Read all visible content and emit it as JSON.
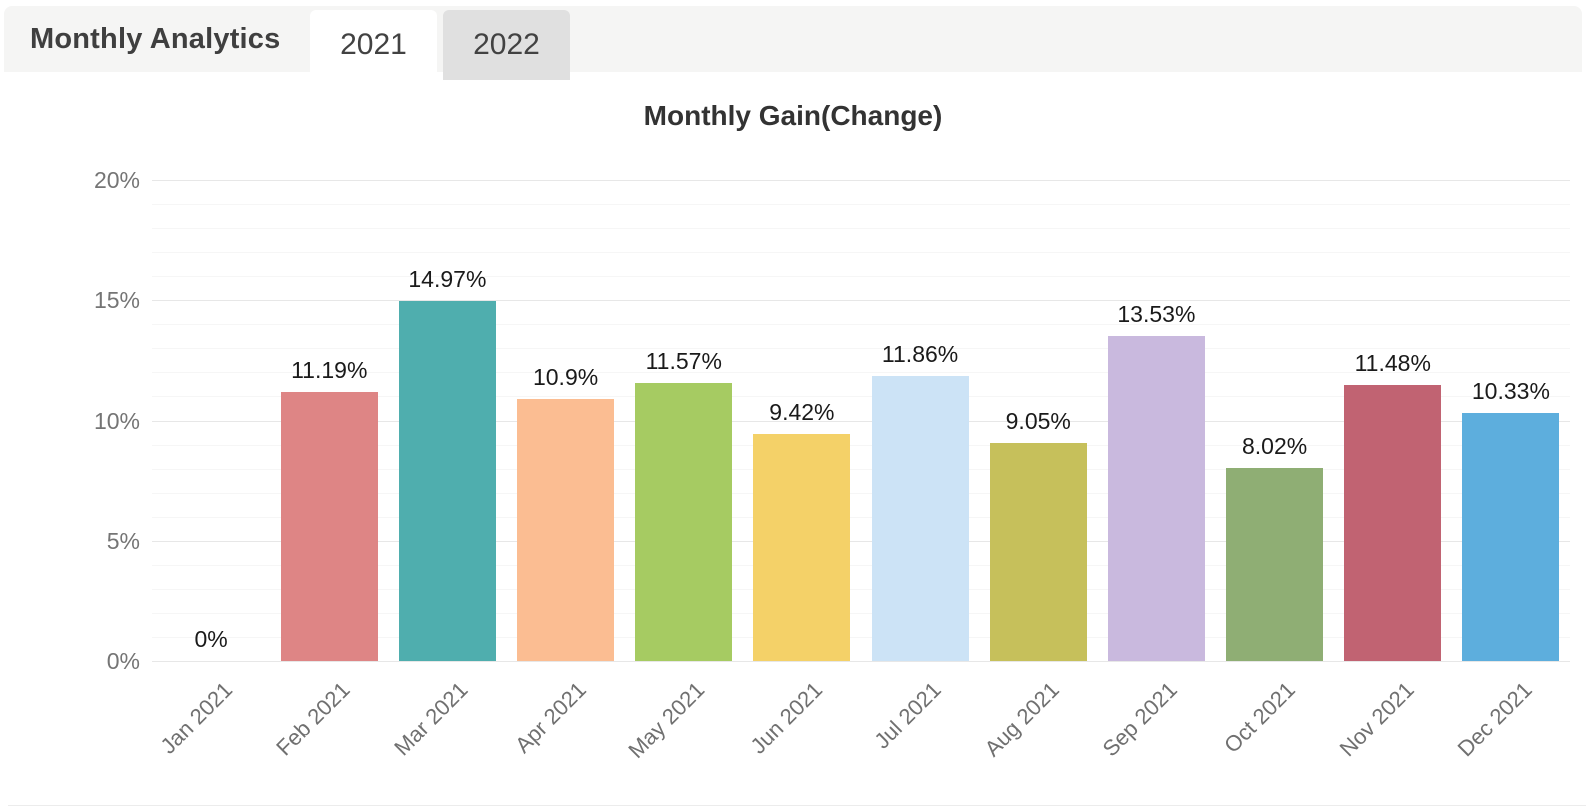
{
  "header": {
    "title": "Monthly Analytics",
    "tabs": [
      {
        "label": "2021",
        "active": true
      },
      {
        "label": "2022",
        "active": false
      }
    ]
  },
  "chart_data": {
    "type": "bar",
    "title": "Monthly Gain(Change)",
    "categories": [
      "Jan 2021",
      "Feb 2021",
      "Mar 2021",
      "Apr 2021",
      "May 2021",
      "Jun 2021",
      "Jul 2021",
      "Aug 2021",
      "Sep 2021",
      "Oct 2021",
      "Nov 2021",
      "Dec 2021"
    ],
    "values": [
      0,
      11.19,
      14.97,
      10.9,
      11.57,
      9.42,
      11.86,
      9.05,
      13.53,
      8.02,
      11.48,
      10.33
    ],
    "value_labels": [
      "0%",
      "11.19%",
      "14.97%",
      "10.9%",
      "11.57%",
      "9.42%",
      "11.86%",
      "9.05%",
      "13.53%",
      "8.02%",
      "11.48%",
      "10.33%"
    ],
    "bar_colors": [
      null,
      "#de8585",
      "#4faeae",
      "#fbbd92",
      "#a6cb62",
      "#f4d168",
      "#cce3f6",
      "#c6c05b",
      "#c9b9de",
      "#8fae74",
      "#c16372",
      "#5daedd"
    ],
    "y_ticks": [
      {
        "value": 0,
        "label": "0%"
      },
      {
        "value": 5,
        "label": "5%"
      },
      {
        "value": 10,
        "label": "10%"
      },
      {
        "value": 15,
        "label": "15%"
      },
      {
        "value": 20,
        "label": "20%"
      }
    ],
    "ylim": [
      0,
      20
    ],
    "xlabel": "",
    "ylabel": "",
    "grid": {
      "minor_step": 1,
      "major_step": 5,
      "visible": true
    },
    "legend": {
      "visible": false
    }
  },
  "colors": {
    "header_bg": "#f5f5f4",
    "tab_active_bg": "#ffffff",
    "tab_inactive_bg": "#e0e0e0",
    "axis_label": "#757575",
    "x_label": "#707070",
    "data_label": "#1a1a1a",
    "grid_minor": "#f6f6f6",
    "grid_major": "#e7e7e7"
  }
}
